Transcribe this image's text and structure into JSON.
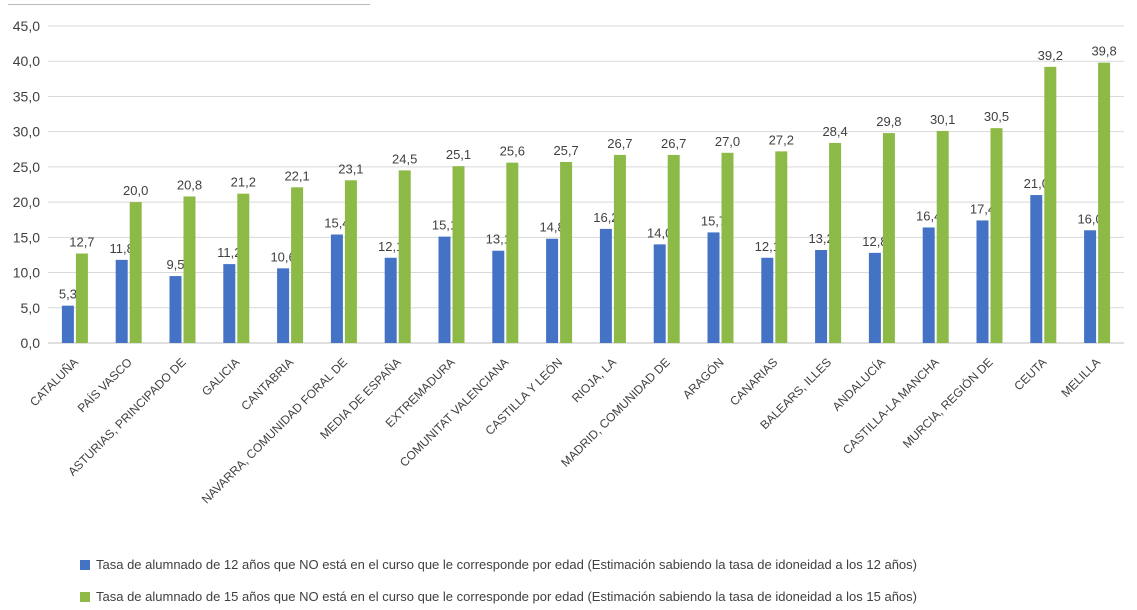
{
  "chart_data": {
    "type": "bar",
    "categories": [
      "CATALUÑA",
      "PAÍS VASCO",
      "ASTURIAS, PRINCIPADO DE",
      "GALICIA",
      "CANTABRIA",
      "NAVARRA, COMUNIDAD FORAL DE",
      "MEDIA DE ESPAÑA",
      "EXTREMADURA",
      "COMUNITAT VALENCIANA",
      "CASTILLA Y LEÓN",
      "RIOJA, LA",
      "MADRID, COMUNIDAD DE",
      "ARAGÓN",
      "CANARIAS",
      "BALEARS, ILLES",
      "ANDALUCÍA",
      "CASTILLA-LA MANCHA",
      "MURCIA, REGIÓN DE",
      "CEUTA",
      "MELILLA"
    ],
    "series": [
      {
        "name": "Tasa de alumnado de 12 años que NO está en el curso que le corresponde por edad (Estimación sabiendo la tasa de idoneidad a los 12 años)",
        "color": "#4472c4",
        "values": [
          5.3,
          11.8,
          9.5,
          11.2,
          10.6,
          15.4,
          12.1,
          15.1,
          13.1,
          14.8,
          16.2,
          14.0,
          15.7,
          12.1,
          13.2,
          12.8,
          16.4,
          17.4,
          21.0,
          16.0
        ],
        "labels": [
          "5,3",
          "11,8",
          "9,5",
          "11,2",
          "10,6",
          "15,4",
          "12,1",
          "15,1",
          "13,1",
          "14,8",
          "16,2",
          "14,0",
          "15,7",
          "12,1",
          "13,2",
          "12,8",
          "16,4",
          "17,4",
          "21,0",
          "16,0"
        ]
      },
      {
        "name": "Tasa de alumnado de 15 años que NO está en el curso que le corresponde por edad (Estimación sabiendo la tasa de idoneidad a los 15 años)",
        "color": "#8db946",
        "values": [
          12.7,
          20.0,
          20.8,
          21.2,
          22.1,
          23.1,
          24.5,
          25.1,
          25.6,
          25.7,
          26.7,
          26.7,
          27.0,
          27.2,
          28.4,
          29.8,
          30.1,
          30.5,
          39.2,
          39.8
        ],
        "labels": [
          "12,7",
          "20,0",
          "20,8",
          "21,2",
          "22,1",
          "23,1",
          "24,5",
          "25,1",
          "25,6",
          "25,7",
          "26,7",
          "26,7",
          "27,0",
          "27,2",
          "28,4",
          "29,8",
          "30,1",
          "30,5",
          "39,2",
          "39,8"
        ]
      }
    ],
    "ylim": [
      0,
      45
    ],
    "yticks": [
      0,
      5,
      10,
      15,
      20,
      25,
      30,
      35,
      40,
      45
    ],
    "ytick_labels": [
      "0,0",
      "5,0",
      "10,0",
      "15,0",
      "20,0",
      "25,0",
      "30,0",
      "35,0",
      "40,0",
      "45,0"
    ],
    "grid": true,
    "legend_position": "bottom"
  }
}
